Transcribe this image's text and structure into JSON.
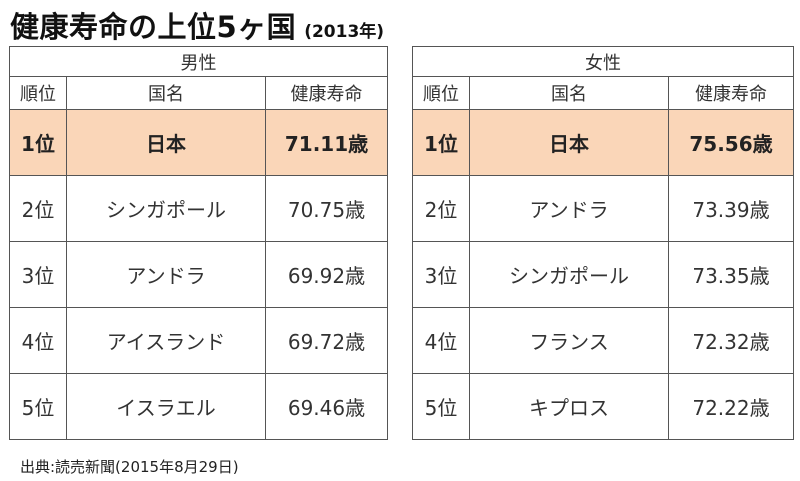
{
  "title": {
    "main": "健康寿命の上位5ヶ国",
    "year": "(2013年)"
  },
  "columns": {
    "rank": "順位",
    "country": "国名",
    "life": "健康寿命"
  },
  "tables": {
    "male": {
      "gender": "男性",
      "rows": [
        {
          "rank": "1位",
          "country": "日本",
          "life": "71.11歳"
        },
        {
          "rank": "2位",
          "country": "シンガポール",
          "life": "70.75歳"
        },
        {
          "rank": "3位",
          "country": "アンドラ",
          "life": "69.92歳"
        },
        {
          "rank": "4位",
          "country": "アイスランド",
          "life": "69.72歳"
        },
        {
          "rank": "5位",
          "country": "イスラエル",
          "life": "69.46歳"
        }
      ]
    },
    "female": {
      "gender": "女性",
      "rows": [
        {
          "rank": "1位",
          "country": "日本",
          "life": "75.56歳"
        },
        {
          "rank": "2位",
          "country": "アンドラ",
          "life": "73.39歳"
        },
        {
          "rank": "3位",
          "country": "シンガポール",
          "life": "73.35歳"
        },
        {
          "rank": "4位",
          "country": "フランス",
          "life": "72.32歳"
        },
        {
          "rank": "5位",
          "country": "キプロス",
          "life": "72.22歳"
        }
      ]
    }
  },
  "highlight_color": "#fad6b8",
  "source": "出典:読売新聞(2015年8月29日)"
}
